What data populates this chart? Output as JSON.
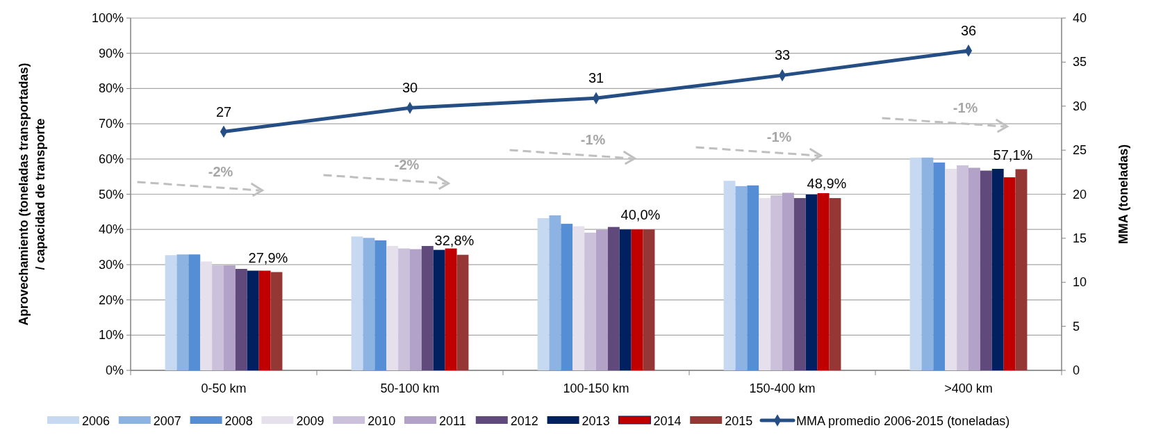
{
  "chart_data": {
    "type": "bar",
    "categories": [
      "0-50 km",
      "50-100 km",
      "100-150 km",
      "150-400 km",
      ">400 km"
    ],
    "ylabel": "Aprovechamiento (toneladas transportadas)\n/ capacidad de transporte",
    "y2label": "MMA (toneladas)",
    "ylim": [
      0,
      100
    ],
    "yticks": [
      {
        "value": 0,
        "label": "0%"
      },
      {
        "value": 10,
        "label": "10%"
      },
      {
        "value": 20,
        "label": "20%"
      },
      {
        "value": 30,
        "label": "30%"
      },
      {
        "value": 40,
        "label": "40%"
      },
      {
        "value": 50,
        "label": "50%"
      },
      {
        "value": 60,
        "label": "60%"
      },
      {
        "value": 70,
        "label": "70%"
      },
      {
        "value": 80,
        "label": "80%"
      },
      {
        "value": 90,
        "label": "90%"
      },
      {
        "value": 100,
        "label": "100%"
      }
    ],
    "y2lim": [
      0,
      40
    ],
    "y2ticks": [
      0,
      5,
      10,
      15,
      20,
      25,
      30,
      35,
      40
    ],
    "grid": "y",
    "legend": "bottom",
    "series": [
      {
        "name": "2006",
        "color": "#c6d9f1",
        "values": [
          32.7,
          38.0,
          43.2,
          53.8,
          60.4
        ]
      },
      {
        "name": "2007",
        "color": "#8db3e2",
        "values": [
          32.9,
          37.6,
          44.0,
          52.3,
          60.4
        ]
      },
      {
        "name": "2008",
        "color": "#558ed5",
        "values": [
          32.9,
          36.9,
          41.6,
          52.5,
          59.0
        ]
      },
      {
        "name": "2009",
        "color": "#e6e0ec",
        "values": [
          30.9,
          35.3,
          40.9,
          48.9,
          57.2
        ]
      },
      {
        "name": "2010",
        "color": "#ccc1da",
        "values": [
          29.8,
          34.6,
          39.1,
          49.7,
          58.2
        ]
      },
      {
        "name": "2011",
        "color": "#b3a2c7",
        "values": [
          29.8,
          34.4,
          39.9,
          50.4,
          57.5
        ]
      },
      {
        "name": "2012",
        "color": "#604a7b",
        "values": [
          28.8,
          35.3,
          40.7,
          48.9,
          56.7
        ]
      },
      {
        "name": "2013",
        "color": "#002060",
        "values": [
          28.3,
          34.2,
          40.0,
          49.9,
          57.2
        ]
      },
      {
        "name": "2014",
        "color": "#c00000",
        "values": [
          28.3,
          34.6,
          40.0,
          50.3,
          54.8
        ]
      },
      {
        "name": "2015",
        "color": "#953735",
        "values": [
          27.9,
          32.8,
          40.0,
          48.9,
          57.1
        ],
        "value_labels": [
          "27,9%",
          "32,8%",
          "40,0%",
          "48,9%",
          "57,1%"
        ]
      },
      {
        "name": "MMA promedio 2006-2015 (toneladas)",
        "type": "line",
        "axis": "y2",
        "color": "#254e84",
        "marker": "diamond",
        "values": [
          27.1,
          29.8,
          30.9,
          33.5,
          36.3
        ],
        "value_labels": [
          "27",
          "30",
          "31",
          "33",
          "36"
        ]
      }
    ],
    "annotations": [
      "-2%",
      "-2%",
      "-1%",
      "-1%",
      "-1%"
    ]
  }
}
